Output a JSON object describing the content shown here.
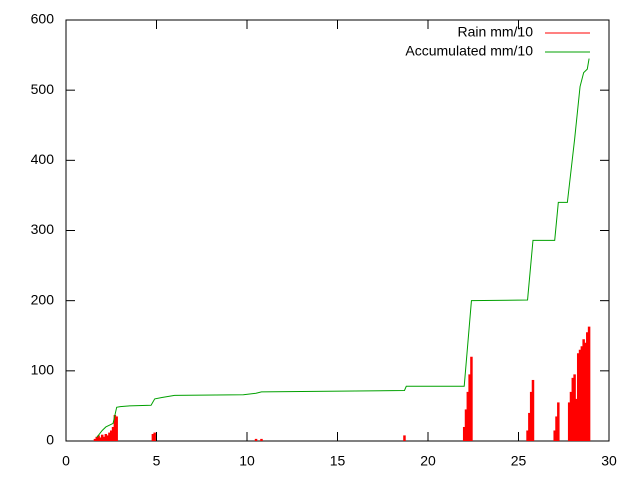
{
  "chart_data": {
    "type": "line",
    "xlim": [
      0,
      30
    ],
    "xticks": [
      0,
      5,
      10,
      15,
      20,
      25,
      30
    ],
    "ylim": [
      0,
      600
    ],
    "yticks": [
      0,
      100,
      200,
      300,
      400,
      500,
      600
    ],
    "legend": "top-right",
    "series": [
      {
        "name": "Rain mm/10",
        "color": "#ff0000",
        "style": "impulses",
        "x": [
          1.6,
          1.7,
          1.8,
          1.9,
          2.0,
          2.1,
          2.2,
          2.3,
          2.4,
          2.5,
          2.6,
          2.7,
          2.8,
          4.8,
          4.9,
          10.5,
          10.8,
          18.7,
          22.0,
          22.1,
          22.2,
          22.3,
          22.4,
          25.5,
          25.6,
          25.7,
          25.8,
          27.0,
          27.1,
          27.2,
          27.8,
          27.9,
          28.0,
          28.1,
          28.2,
          28.3,
          28.4,
          28.5,
          28.6,
          28.7,
          28.8,
          28.9
        ],
        "values": [
          3,
          6,
          8,
          5,
          9,
          6,
          10,
          8,
          12,
          15,
          20,
          37,
          35,
          10,
          12,
          3,
          3,
          8,
          20,
          45,
          70,
          95,
          120,
          15,
          40,
          70,
          87,
          15,
          35,
          55,
          55,
          70,
          90,
          95,
          60,
          125,
          130,
          135,
          145,
          140,
          155,
          163
        ]
      },
      {
        "name": "Accumulated mm/10",
        "color": "#00a000",
        "style": "lines",
        "x": [
          1.7,
          2.0,
          2.2,
          2.6,
          2.8,
          3.0,
          3.5,
          4.7,
          4.9,
          5.3,
          6.0,
          9.8,
          10.5,
          10.8,
          18.7,
          18.8,
          22.0,
          22.4,
          25.5,
          25.8,
          27.0,
          27.2,
          27.7,
          28.1,
          28.4,
          28.6,
          28.8,
          28.9
        ],
        "values": [
          5,
          15,
          20,
          25,
          48,
          49,
          50,
          51,
          60,
          62,
          65,
          66,
          68,
          70,
          72,
          78,
          78,
          200,
          201,
          286,
          286,
          340,
          340,
          430,
          505,
          525,
          530,
          545
        ]
      }
    ]
  }
}
